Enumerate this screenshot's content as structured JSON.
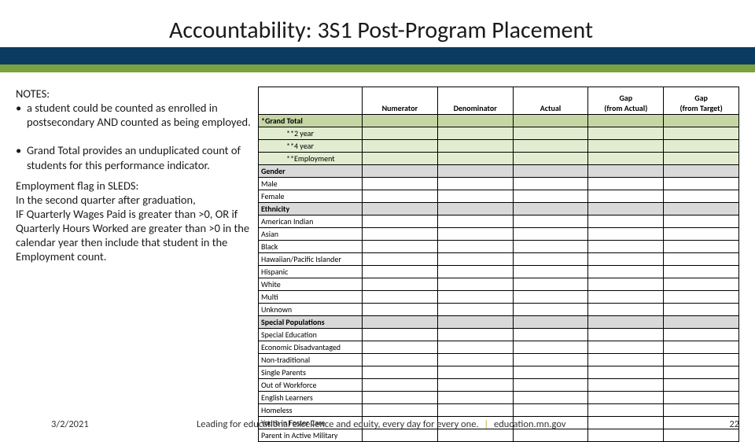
{
  "title": "Accountability: 3S1 Post-Program Placement",
  "colors": {
    "header_band": "#0b3b60",
    "green_band": "#7aa23f",
    "grand_row": "#c5d6a4",
    "sub_row": "#e2ecd0",
    "section_row": "#d9d9d9",
    "footer_sep": "#d0a030"
  },
  "notes": {
    "heading": "NOTES:",
    "bullet1": "a student could be counted as enrolled in postsecondary AND counted as being employed.",
    "bullet2": "Grand Total provides an unduplicated count of students for this performance indicator.",
    "sleds": "Employment flag in SLEDS:\nIn the second quarter after graduation,\nIF Quarterly Wages Paid is greater than >0, OR if Quarterly Hours Worked are greater than >0 in the calendar year then include that student in the Employment count."
  },
  "table": {
    "columns": [
      "",
      "Numerator",
      "Denominator",
      "Actual",
      "Gap\n(from Actual)",
      "Gap\n(from Target)"
    ],
    "rows": [
      {
        "label": "*Grand Total",
        "class": "row-shade-grand",
        "indent": 0
      },
      {
        "label": "**2 year",
        "class": "row-shade-sub",
        "indent": 1
      },
      {
        "label": "**4 year",
        "class": "row-shade-sub",
        "indent": 1
      },
      {
        "label": "**Employment",
        "class": "row-shade-sub",
        "indent": 1
      },
      {
        "label": "Gender",
        "class": "row-section",
        "indent": 0
      },
      {
        "label": "Male",
        "class": "row-normal",
        "indent": 0
      },
      {
        "label": "Female",
        "class": "row-normal",
        "indent": 0
      },
      {
        "label": "Ethnicity",
        "class": "row-section",
        "indent": 0
      },
      {
        "label": "American Indian",
        "class": "row-normal",
        "indent": 0
      },
      {
        "label": "Asian",
        "class": "row-normal",
        "indent": 0
      },
      {
        "label": "Black",
        "class": "row-normal",
        "indent": 0
      },
      {
        "label": "Hawaiian/Pacific Islander",
        "class": "row-normal",
        "indent": 0
      },
      {
        "label": "Hispanic",
        "class": "row-normal",
        "indent": 0
      },
      {
        "label": "White",
        "class": "row-normal",
        "indent": 0
      },
      {
        "label": "Multi",
        "class": "row-normal",
        "indent": 0
      },
      {
        "label": "Unknown",
        "class": "row-normal",
        "indent": 0
      },
      {
        "label": "Special Populations",
        "class": "row-section",
        "indent": 0
      },
      {
        "label": "Special Education",
        "class": "row-normal",
        "indent": 0
      },
      {
        "label": "Economic Disadvantaged",
        "class": "row-normal",
        "indent": 0
      },
      {
        "label": "Non-traditional",
        "class": "row-normal",
        "indent": 0
      },
      {
        "label": "Single Parents",
        "class": "row-normal",
        "indent": 0
      },
      {
        "label": "Out of Workforce",
        "class": "row-normal",
        "indent": 0
      },
      {
        "label": "English Learners",
        "class": "row-normal",
        "indent": 0
      },
      {
        "label": "Homeless",
        "class": "row-normal",
        "indent": 0
      },
      {
        "label": "Youth in Foster Care",
        "class": "row-normal",
        "indent": 0
      },
      {
        "label": "Parent in Active Military",
        "class": "row-normal",
        "indent": 0
      }
    ]
  },
  "footer": {
    "date": "3/2/2021",
    "center_text": "Leading for educational excellence and equity, every day for every one.",
    "center_link": "education.mn.gov",
    "page": "22"
  }
}
